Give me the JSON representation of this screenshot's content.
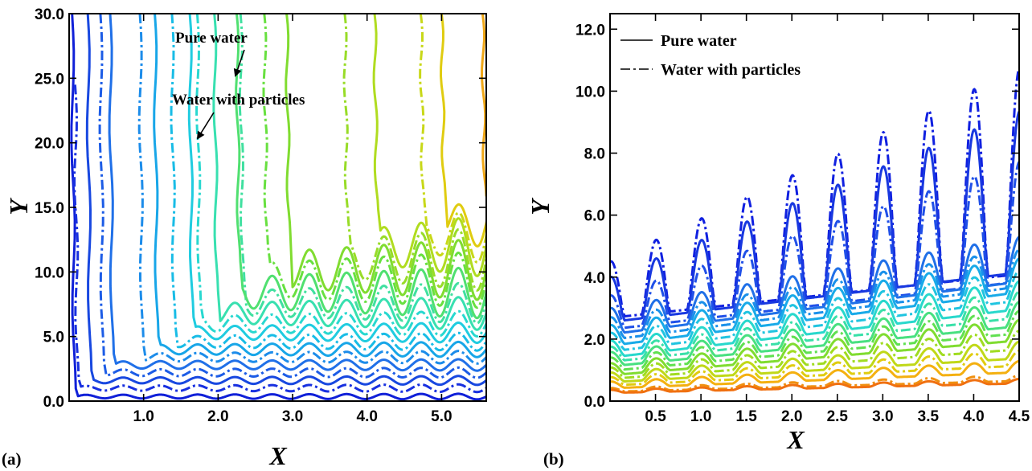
{
  "chart_data": [
    {
      "panel_label": "(a)",
      "type": "line",
      "subtype": "contour",
      "xlabel": "X",
      "ylabel": "Y",
      "xlim": [
        0.0,
        5.6
      ],
      "ylim": [
        0.0,
        30.0
      ],
      "x_ticks": [
        1.0,
        2.0,
        3.0,
        4.0,
        5.0
      ],
      "x_tick_labels": [
        "1.0",
        "2.0",
        "3.0",
        "4.0",
        "5.0"
      ],
      "y_ticks": [
        0,
        5,
        10,
        15,
        20,
        25,
        30
      ],
      "y_tick_labels": [
        "0.0",
        "5.0",
        "10.0",
        "15.0",
        "20.0",
        "25.0",
        "30.0"
      ],
      "grid": false,
      "annotations": [
        {
          "text": "Pure water",
          "points_to_x": 2.25,
          "points_to_y": 24.5
        },
        {
          "text": "Water with particles",
          "points_to_x": 1.7,
          "points_to_y": 20.0
        }
      ],
      "series": [
        {
          "style": "solid",
          "color": "#1020d8",
          "level_y": 0.35,
          "wave_amp": 0.22,
          "vertical_x": 0.04,
          "vertical_top": 30.0
        },
        {
          "style": "dashdot",
          "color": "#1830e0",
          "level_y": 1.0,
          "wave_amp": 0.3,
          "vertical_x": 0.08,
          "vertical_top": 24.5
        },
        {
          "style": "solid",
          "color": "#1848e0",
          "level_y": 1.6,
          "wave_amp": 0.35,
          "vertical_x": 0.25,
          "vertical_top": 30.0
        },
        {
          "style": "dashdot",
          "color": "#1c5ce6",
          "level_y": 2.2,
          "wave_amp": 0.4,
          "vertical_x": 0.42,
          "vertical_top": 30.0
        },
        {
          "style": "solid",
          "color": "#2070e8",
          "level_y": 2.8,
          "wave_amp": 0.45,
          "vertical_x": 0.55,
          "vertical_top": 30.0
        },
        {
          "style": "dashdot",
          "color": "#1c8cea",
          "level_y": 3.4,
          "wave_amp": 0.5,
          "vertical_x": 0.95,
          "vertical_top": 30.0
        },
        {
          "style": "solid",
          "color": "#18a6e8",
          "level_y": 4.0,
          "wave_amp": 0.6,
          "vertical_x": 1.15,
          "vertical_top": 30.0
        },
        {
          "style": "dashdot",
          "color": "#18bce6",
          "level_y": 4.6,
          "wave_amp": 0.7,
          "vertical_x": 1.38,
          "vertical_top": 30.0
        },
        {
          "style": "solid",
          "color": "#20cce0",
          "level_y": 5.3,
          "wave_amp": 0.8,
          "vertical_x": 1.62,
          "vertical_top": 30.0
        },
        {
          "style": "dashdot",
          "color": "#28d8d0",
          "level_y": 6.0,
          "wave_amp": 1.0,
          "vertical_x": 1.72,
          "vertical_top": 30.0
        },
        {
          "style": "solid",
          "color": "#38e0b0",
          "level_y": 6.8,
          "wave_amp": 1.3,
          "vertical_x": 1.95,
          "vertical_top": 30.0
        },
        {
          "style": "dashdot",
          "color": "#40e0a0",
          "level_y": 7.6,
          "wave_amp": 1.6,
          "vertical_x": 2.3,
          "vertical_top": 30.0
        },
        {
          "style": "solid",
          "color": "#50e070",
          "level_y": 8.4,
          "wave_amp": 2.0,
          "vertical_x": 2.25,
          "vertical_top": 30.0
        },
        {
          "style": "dashdot",
          "color": "#68e040",
          "level_y": 9.4,
          "wave_amp": 2.2,
          "vertical_x": 2.62,
          "vertical_top": 30.0
        },
        {
          "style": "solid",
          "color": "#80dc30",
          "level_y": 10.2,
          "wave_amp": 2.4,
          "vertical_x": 2.92,
          "vertical_top": 30.0
        },
        {
          "style": "dashdot",
          "color": "#98dc28",
          "level_y": 11.0,
          "wave_amp": 2.5,
          "vertical_x": 3.7,
          "vertical_top": 30.0
        },
        {
          "style": "solid",
          "color": "#b0dc20",
          "level_y": 12.0,
          "wave_amp": 2.4,
          "vertical_x": 4.1,
          "vertical_top": 30.0
        },
        {
          "style": "dashdot",
          "color": "#c8d818",
          "level_y": 12.8,
          "wave_amp": 2.2,
          "vertical_x": 4.72,
          "vertical_top": 30.0
        },
        {
          "style": "solid",
          "color": "#e0cc10",
          "level_y": 13.8,
          "wave_amp": 2.0,
          "vertical_x": 5.0,
          "vertical_top": 30.0
        },
        {
          "style": "solid",
          "color": "#f0a818",
          "level_y": 15.5,
          "wave_amp": 0.0,
          "vertical_x": 5.55,
          "vertical_top": 30.0
        }
      ]
    },
    {
      "panel_label": "(b)",
      "type": "line",
      "xlabel": "X",
      "ylabel": "Y",
      "xlim": [
        0.0,
        4.5
      ],
      "ylim": [
        0.0,
        12.5
      ],
      "x_ticks": [
        0.5,
        1.0,
        1.5,
        2.0,
        2.5,
        3.0,
        3.5,
        4.0,
        4.5
      ],
      "x_tick_labels": [
        "0.5",
        "1.0",
        "1.5",
        "2.0",
        "2.5",
        "3.0",
        "3.5",
        "4.0",
        "4.5"
      ],
      "y_ticks": [
        0,
        2,
        4,
        6,
        8,
        10,
        12
      ],
      "y_tick_labels": [
        "0.0",
        "2.0",
        "4.0",
        "6.0",
        "8.0",
        "10.0",
        "12.0"
      ],
      "grid": false,
      "legend": {
        "position": "top-left",
        "entries": [
          {
            "label": "Pure water",
            "style": "solid"
          },
          {
            "label": "Water with particles",
            "style": "dashdot"
          }
        ]
      },
      "series": [
        {
          "style": "dashdot",
          "color": "#1020e0",
          "baseline": 3.0,
          "baseline_slope": 0.5,
          "amp_start": 1.5,
          "amp_end": 5.5
        },
        {
          "style": "solid",
          "color": "#1838e0",
          "baseline": 2.8,
          "baseline_slope": 0.5,
          "amp_start": 1.2,
          "amp_end": 4.3
        },
        {
          "style": "dashdot",
          "color": "#2050e8",
          "baseline": 2.5,
          "baseline_slope": 0.45,
          "amp_start": 0.9,
          "amp_end": 3.2
        },
        {
          "style": "solid",
          "color": "#2070e8",
          "baseline": 2.3,
          "baseline_slope": 0.4,
          "amp_start": 0.7,
          "amp_end": 1.2
        },
        {
          "style": "dashdot",
          "color": "#1a90ea",
          "baseline": 2.1,
          "baseline_slope": 0.4,
          "amp_start": 0.6,
          "amp_end": 1.0
        },
        {
          "style": "solid",
          "color": "#18aae8",
          "baseline": 1.9,
          "baseline_slope": 0.4,
          "amp_start": 0.55,
          "amp_end": 0.9
        },
        {
          "style": "dashdot",
          "color": "#20c4e0",
          "baseline": 1.7,
          "baseline_slope": 0.38,
          "amp_start": 0.5,
          "amp_end": 0.8
        },
        {
          "style": "solid",
          "color": "#28d8cc",
          "baseline": 1.5,
          "baseline_slope": 0.36,
          "amp_start": 0.45,
          "amp_end": 0.75
        },
        {
          "style": "dashdot",
          "color": "#38e0a8",
          "baseline": 1.35,
          "baseline_slope": 0.33,
          "amp_start": 0.4,
          "amp_end": 0.7
        },
        {
          "style": "solid",
          "color": "#48e080",
          "baseline": 1.2,
          "baseline_slope": 0.3,
          "amp_start": 0.38,
          "amp_end": 0.65
        },
        {
          "style": "dashdot",
          "color": "#60e050",
          "baseline": 1.05,
          "baseline_slope": 0.28,
          "amp_start": 0.35,
          "amp_end": 0.6
        },
        {
          "style": "solid",
          "color": "#80dc30",
          "baseline": 0.9,
          "baseline_slope": 0.26,
          "amp_start": 0.32,
          "amp_end": 0.55
        },
        {
          "style": "dashdot",
          "color": "#a0dc20",
          "baseline": 0.78,
          "baseline_slope": 0.22,
          "amp_start": 0.3,
          "amp_end": 0.5
        },
        {
          "style": "solid",
          "color": "#c0d818",
          "baseline": 0.66,
          "baseline_slope": 0.18,
          "amp_start": 0.26,
          "amp_end": 0.45
        },
        {
          "style": "dashdot",
          "color": "#e0cc10",
          "baseline": 0.55,
          "baseline_slope": 0.15,
          "amp_start": 0.22,
          "amp_end": 0.4
        },
        {
          "style": "solid",
          "color": "#f4b010",
          "baseline": 0.45,
          "baseline_slope": 0.12,
          "amp_start": 0.18,
          "amp_end": 0.3
        },
        {
          "style": "dashdot",
          "color": "#f09010",
          "baseline": 0.32,
          "baseline_slope": 0.08,
          "amp_start": 0.1,
          "amp_end": 0.15
        },
        {
          "style": "solid",
          "color": "#f07010",
          "baseline": 0.28,
          "baseline_slope": 0.07,
          "amp_start": 0.08,
          "amp_end": 0.12
        }
      ]
    }
  ]
}
